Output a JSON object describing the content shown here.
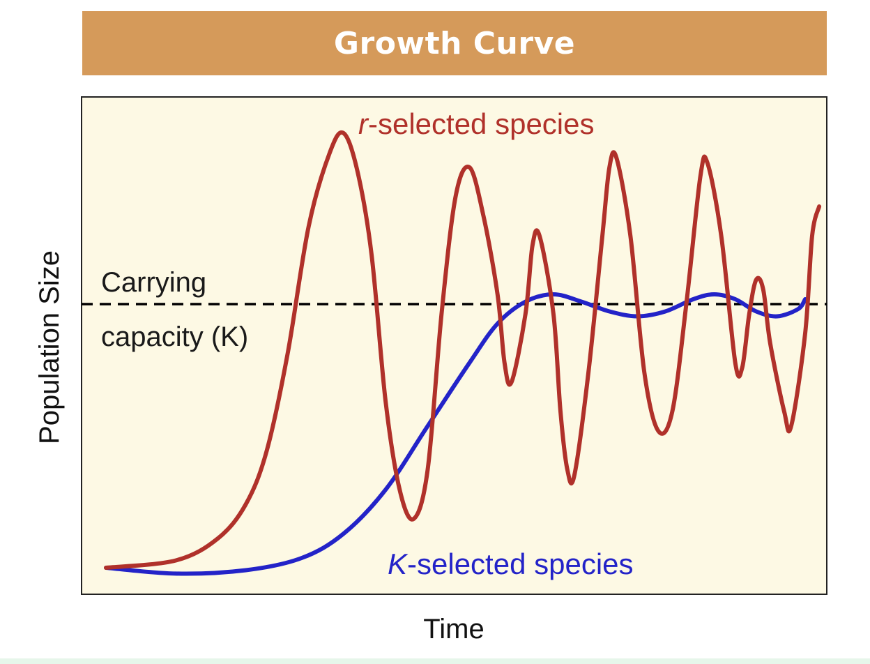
{
  "chart_data": {
    "type": "line",
    "title": "Growth Curve",
    "xlabel": "Time",
    "ylabel": "Population Size",
    "xlim": [
      0,
      100
    ],
    "ylim": [
      0,
      100
    ],
    "grid": false,
    "colors": {
      "banner": "#d59a5a",
      "plot_bg": "#fdf9e4",
      "r_series": "#b0312a",
      "k_series": "#2323c8",
      "carrying_line": "#000000"
    },
    "carrying_capacity": {
      "y": 58,
      "label_line1": "Carrying",
      "label_line2": "capacity (K)"
    },
    "series": [
      {
        "name": "r-selected species",
        "name_italic": "r",
        "name_rest": "-selected species",
        "color": "#b0312a",
        "points": [
          [
            0,
            4
          ],
          [
            10,
            5.5
          ],
          [
            16,
            10
          ],
          [
            20,
            17
          ],
          [
            23,
            28
          ],
          [
            26,
            48
          ],
          [
            29,
            74
          ],
          [
            32,
            89
          ],
          [
            34,
            93
          ],
          [
            36,
            85
          ],
          [
            38,
            68
          ],
          [
            40,
            38
          ],
          [
            42,
            20
          ],
          [
            44,
            14
          ],
          [
            46,
            24
          ],
          [
            48,
            56
          ],
          [
            50,
            80
          ],
          [
            52,
            86
          ],
          [
            54,
            76
          ],
          [
            56,
            60
          ],
          [
            57,
            46
          ],
          [
            58,
            42
          ],
          [
            60,
            56
          ],
          [
            61,
            70
          ],
          [
            62,
            72
          ],
          [
            64,
            56
          ],
          [
            65,
            36
          ],
          [
            66,
            24
          ],
          [
            67,
            23
          ],
          [
            69,
            44
          ],
          [
            71,
            72
          ],
          [
            72,
            86
          ],
          [
            73,
            88
          ],
          [
            75,
            72
          ],
          [
            77,
            44
          ],
          [
            79,
            32
          ],
          [
            81,
            36
          ],
          [
            83,
            58
          ],
          [
            85,
            84
          ],
          [
            86,
            87
          ],
          [
            88,
            72
          ],
          [
            90,
            46
          ],
          [
            91,
            45
          ],
          [
            92,
            56
          ],
          [
            93,
            63
          ],
          [
            94,
            61
          ],
          [
            95,
            50
          ],
          [
            97,
            36
          ],
          [
            98,
            33
          ],
          [
            100,
            52
          ],
          [
            101,
            72
          ],
          [
            102,
            78
          ]
        ]
      },
      {
        "name": "K-selected species",
        "name_italic": "K",
        "name_rest": "-selected species",
        "color": "#2323c8",
        "points": [
          [
            0,
            4
          ],
          [
            10,
            2.8
          ],
          [
            20,
            3.5
          ],
          [
            28,
            6
          ],
          [
            34,
            11
          ],
          [
            40,
            20
          ],
          [
            46,
            33
          ],
          [
            52,
            46
          ],
          [
            56,
            54
          ],
          [
            60,
            58.5
          ],
          [
            64,
            60
          ],
          [
            68,
            58.5
          ],
          [
            72,
            56.5
          ],
          [
            76,
            55.5
          ],
          [
            80,
            56.5
          ],
          [
            84,
            59
          ],
          [
            87,
            60
          ],
          [
            90,
            59
          ],
          [
            93,
            56.5
          ],
          [
            96,
            55.5
          ],
          [
            99,
            57
          ],
          [
            100,
            59
          ]
        ]
      }
    ]
  }
}
